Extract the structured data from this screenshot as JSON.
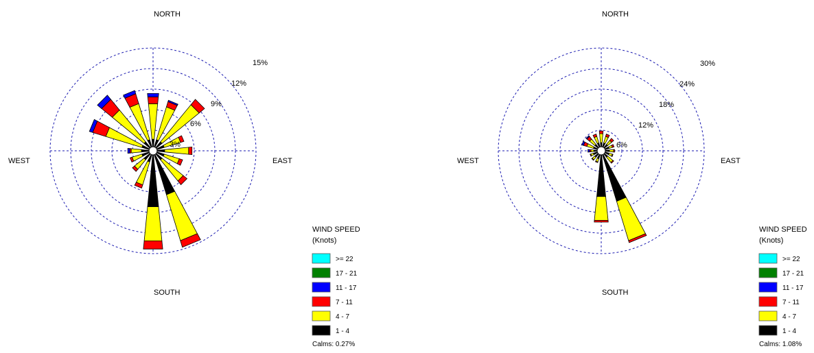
{
  "colors": {
    "ring": "#1a1ab0",
    "bins": [
      "#000000",
      "#ffff00",
      "#ff0000",
      "#0000ff",
      "#008000",
      "#00ffff"
    ]
  },
  "legend": {
    "title_line1": "WIND SPEED",
    "title_line2": "(Knots)",
    "items": [
      ">= 22",
      "17 - 21",
      "11 - 17",
      "7 - 11",
      "4 - 7",
      "1 - 4"
    ]
  },
  "chart_data": [
    {
      "type": "windrose",
      "compass": {
        "north": "NORTH",
        "south": "SOUTH",
        "east": "EAST",
        "west": "WEST"
      },
      "rings": [
        3,
        6,
        9,
        12,
        15
      ],
      "ring_labels": [
        "3%",
        "6%",
        "9%",
        "12%",
        "15%"
      ],
      "bins": [
        "1 - 4",
        "4 - 7",
        "7 - 11",
        "11 - 17",
        "17 - 21",
        ">= 22"
      ],
      "directions": [
        0,
        22.5,
        45,
        67.5,
        90,
        112.5,
        135,
        157.5,
        180,
        202.5,
        225,
        247.5,
        270,
        292.5,
        315,
        337.5
      ],
      "frequencies": [
        [
          1.0,
          5.2,
          1.0,
          0.5,
          0,
          0
        ],
        [
          1.0,
          5.0,
          0.8,
          0.2,
          0,
          0
        ],
        [
          1.0,
          7.0,
          1.0,
          0,
          0,
          0
        ],
        [
          1.0,
          2.5,
          0.5,
          0,
          0,
          0
        ],
        [
          1.0,
          3.5,
          0.5,
          0,
          0,
          0
        ],
        [
          1.0,
          2.3,
          0.5,
          0,
          0,
          0
        ],
        [
          1.0,
          4.0,
          0.7,
          0,
          0,
          0
        ],
        [
          6.0,
          7.0,
          1.0,
          0,
          0,
          0
        ],
        [
          7.5,
          5.0,
          1.2,
          0,
          0,
          0
        ],
        [
          1.0,
          3.5,
          0.5,
          0,
          0,
          0
        ],
        [
          1.0,
          1.8,
          0.4,
          0,
          0,
          0
        ],
        [
          1.0,
          1.5,
          0.3,
          0,
          0,
          0
        ],
        [
          1.0,
          1.5,
          0.2,
          0.3,
          0,
          0
        ],
        [
          1.0,
          5.5,
          2.0,
          0.5,
          0,
          0
        ],
        [
          1.0,
          6.0,
          2.0,
          0.8,
          0,
          0
        ],
        [
          1.0,
          5.5,
          1.5,
          0.5,
          0,
          0
        ]
      ],
      "calms": "Calms: 0.27%"
    },
    {
      "type": "windrose",
      "compass": {
        "north": "NORTH",
        "south": "SOUTH",
        "east": "EAST",
        "west": "WEST"
      },
      "rings": [
        6,
        12,
        18,
        24,
        30
      ],
      "ring_labels": [
        "6%",
        "12%",
        "18%",
        "24%",
        "30%"
      ],
      "bins": [
        "1 - 4",
        "4 - 7",
        "7 - 11",
        "11 - 17",
        "17 - 21",
        ">= 22"
      ],
      "directions": [
        0,
        22.5,
        45,
        67.5,
        90,
        112.5,
        135,
        157.5,
        180,
        202.5,
        225,
        247.5,
        270,
        292.5,
        315,
        337.5
      ],
      "frequencies": [
        [
          1.0,
          2.6,
          0.8,
          0,
          0,
          0
        ],
        [
          1.0,
          2.0,
          0.7,
          0,
          0,
          0
        ],
        [
          1.0,
          1.5,
          0.8,
          0,
          0,
          0
        ],
        [
          1.0,
          1.0,
          0.5,
          0,
          0,
          0
        ],
        [
          1.0,
          1.2,
          0.3,
          0,
          0,
          0
        ],
        [
          1.0,
          1.0,
          0.2,
          0,
          0,
          0
        ],
        [
          1.0,
          2.0,
          0.3,
          0,
          0,
          0
        ],
        [
          14.0,
          12.0,
          0.6,
          0,
          0,
          0
        ],
        [
          12.0,
          7.0,
          0.5,
          0,
          0,
          0
        ],
        [
          1.0,
          1.0,
          0.2,
          0,
          0,
          0
        ],
        [
          1.0,
          1.0,
          0.2,
          0,
          0,
          0
        ],
        [
          1.0,
          0.8,
          0.2,
          0,
          0,
          0
        ],
        [
          0.8,
          0.8,
          0.4,
          0.5,
          0,
          0
        ],
        [
          1.0,
          2.0,
          1.0,
          0.5,
          0,
          0
        ],
        [
          1.0,
          2.0,
          1.0,
          0.3,
          0,
          0
        ],
        [
          1.0,
          2.0,
          0.7,
          0,
          0,
          0
        ]
      ],
      "calms": "Calms: 1.08%"
    }
  ]
}
